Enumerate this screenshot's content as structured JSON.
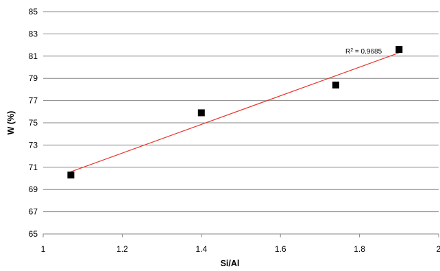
{
  "chart_data": {
    "type": "scatter",
    "title": "",
    "xlabel": "Si/Al",
    "ylabel": "W (%)",
    "xlim": [
      1,
      2
    ],
    "ylim": [
      65,
      85
    ],
    "x_ticks": [
      1,
      1.2,
      1.4,
      1.6,
      1.8,
      2
    ],
    "x_tick_labels": [
      "1",
      "1.2",
      "1.4",
      "1.6",
      "1.8",
      "2"
    ],
    "y_ticks": [
      65,
      67,
      69,
      71,
      73,
      75,
      77,
      79,
      81,
      83,
      85
    ],
    "y_tick_labels": [
      "65",
      "67",
      "69",
      "71",
      "73",
      "75",
      "77",
      "79",
      "81",
      "83",
      "85"
    ],
    "grid": "horizontal",
    "series": [
      {
        "x": [
          1.07,
          1.4,
          1.74,
          1.9
        ],
        "y": [
          70.3,
          75.9,
          78.4,
          81.6
        ],
        "marker": "square",
        "color": "#000000"
      }
    ],
    "trendline": {
      "type": "linear",
      "x_range": [
        1.07,
        1.9
      ],
      "y_range": [
        70.6,
        81.3
      ],
      "color": "#e8332a",
      "r_squared_label": "= 0.9685"
    }
  }
}
